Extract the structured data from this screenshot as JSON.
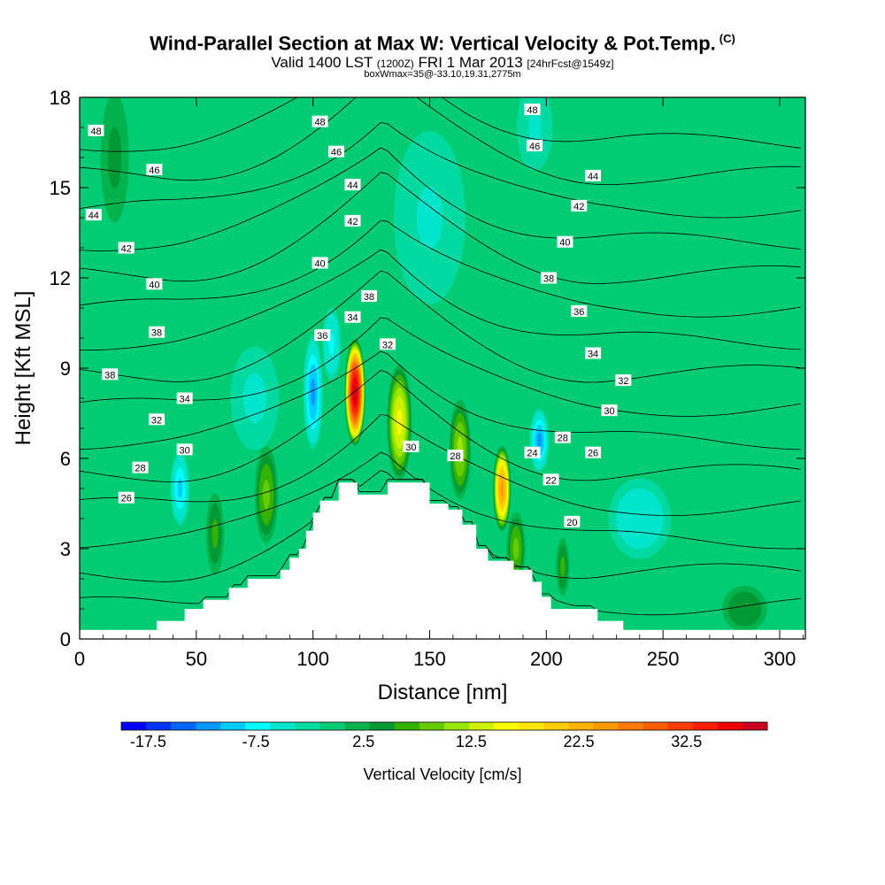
{
  "title": {
    "main": "Wind-Parallel Section at Max W: Vertical Velocity & Pot.Temp.",
    "main_tag": "(C)",
    "valid_pre": "Valid 1400 LST",
    "valid_utc": "(1200Z)",
    "valid_post": "FRI 1 Mar 2013",
    "forecast": "[24hrFcst@1549z]",
    "box": "boxWmax=35@-33.10,19.31,2775m"
  },
  "colors": {
    "background": "#00cc73",
    "terrain": "#ffffff",
    "contour": "#000000",
    "colorbar": [
      "#0000ff",
      "#0033ff",
      "#0066ff",
      "#0099ff",
      "#00ccff",
      "#00ffff",
      "#00e6cc",
      "#00d99f",
      "#00cc73",
      "#00b34d",
      "#009933",
      "#33b300",
      "#66cc00",
      "#99e600",
      "#ccf200",
      "#ffff00",
      "#ffe600",
      "#ffcc00",
      "#ffb300",
      "#ff9900",
      "#ff7a00",
      "#ff5c00",
      "#ff3d00",
      "#ff1f00",
      "#ee0000",
      "#cc0022"
    ]
  },
  "chart_data": {
    "type": "heatmap",
    "xlabel": "Distance [nm]",
    "ylabel": "Height [Kft MSL]",
    "xlim": [
      0,
      311
    ],
    "ylim": [
      0,
      18
    ],
    "xticks": [
      0,
      50,
      100,
      150,
      200,
      250,
      300
    ],
    "yticks": [
      0,
      3,
      6,
      9,
      12,
      15,
      18
    ],
    "colorbar": {
      "label": "Vertical Velocity [cm/s]",
      "min": -20,
      "max": 40,
      "ticks": [
        -17.5,
        -7.5,
        2.5,
        12.5,
        22.5,
        32.5
      ]
    },
    "terrain": [
      [
        0,
        0.3
      ],
      [
        33,
        0.3
      ],
      [
        33,
        0.6
      ],
      [
        45,
        0.6
      ],
      [
        45,
        1.0
      ],
      [
        53,
        1.0
      ],
      [
        53,
        1.3
      ],
      [
        64,
        1.3
      ],
      [
        64,
        1.7
      ],
      [
        72,
        1.7
      ],
      [
        72,
        2.0
      ],
      [
        86,
        2.0
      ],
      [
        86,
        2.3
      ],
      [
        90,
        2.3
      ],
      [
        90,
        2.7
      ],
      [
        94,
        2.7
      ],
      [
        94,
        3.0
      ],
      [
        97,
        3.0
      ],
      [
        97,
        3.6
      ],
      [
        100,
        3.6
      ],
      [
        100,
        4.2
      ],
      [
        103,
        4.2
      ],
      [
        103,
        4.6
      ],
      [
        111,
        4.6
      ],
      [
        111,
        5.2
      ],
      [
        119,
        5.2
      ],
      [
        119,
        4.8
      ],
      [
        132,
        4.8
      ],
      [
        132,
        5.2
      ],
      [
        150,
        5.2
      ],
      [
        150,
        4.5
      ],
      [
        158,
        4.5
      ],
      [
        158,
        4.3
      ],
      [
        164,
        4.3
      ],
      [
        164,
        3.8
      ],
      [
        170,
        3.8
      ],
      [
        170,
        3.0
      ],
      [
        175,
        3.0
      ],
      [
        175,
        2.6
      ],
      [
        186,
        2.6
      ],
      [
        186,
        2.3
      ],
      [
        194,
        2.3
      ],
      [
        194,
        1.9
      ],
      [
        198,
        1.9
      ],
      [
        198,
        1.4
      ],
      [
        202,
        1.4
      ],
      [
        202,
        1.0
      ],
      [
        222,
        1.0
      ],
      [
        222,
        0.6
      ],
      [
        233,
        0.6
      ],
      [
        233,
        0.3
      ],
      [
        311,
        0.3
      ]
    ],
    "vertical_velocity_features": [
      {
        "x": 118,
        "y": 8.2,
        "value": 38,
        "sx": 4,
        "sy": 1.6
      },
      {
        "x": 181,
        "y": 5.0,
        "value": 25,
        "sx": 3.5,
        "sy": 1.3
      },
      {
        "x": 137,
        "y": 7.2,
        "value": 15,
        "sx": 5,
        "sy": 1.8
      },
      {
        "x": 163,
        "y": 6.3,
        "value": 10,
        "sx": 4.5,
        "sy": 1.6
      },
      {
        "x": 80,
        "y": 4.8,
        "value": 9,
        "sx": 5,
        "sy": 1.6
      },
      {
        "x": 58,
        "y": 3.5,
        "value": 6,
        "sx": 4,
        "sy": 1.4
      },
      {
        "x": 187,
        "y": 3.0,
        "value": 8,
        "sx": 4,
        "sy": 1.2
      },
      {
        "x": 207,
        "y": 2.4,
        "value": 6,
        "sx": 3,
        "sy": 1.0
      },
      {
        "x": 100,
        "y": 8.2,
        "value": -12,
        "sx": 4,
        "sy": 1.8
      },
      {
        "x": 108,
        "y": 9.8,
        "value": -8,
        "sx": 4,
        "sy": 1.2
      },
      {
        "x": 43,
        "y": 5.0,
        "value": -10,
        "sx": 4,
        "sy": 1.2
      },
      {
        "x": 197,
        "y": 6.6,
        "value": -12,
        "sx": 4,
        "sy": 1.0
      },
      {
        "x": 240,
        "y": 4.0,
        "value": -6,
        "sx": 14,
        "sy": 1.4
      },
      {
        "x": 150,
        "y": 14.0,
        "value": -5,
        "sx": 16,
        "sy": 3
      },
      {
        "x": 75,
        "y": 8.0,
        "value": -4,
        "sx": 12,
        "sy": 2.0
      },
      {
        "x": 195,
        "y": 17.0,
        "value": -5,
        "sx": 8,
        "sy": 1.5
      },
      {
        "x": 15,
        "y": 16.0,
        "value": 4,
        "sx": 7,
        "sy": 2.5
      },
      {
        "x": 285,
        "y": 1.0,
        "value": 5,
        "sx": 10,
        "sy": 0.8
      }
    ],
    "theta_levels": [
      20,
      22,
      24,
      26,
      28,
      30,
      32,
      34,
      36,
      38,
      40,
      42,
      44,
      46,
      48
    ],
    "theta_labels": [
      {
        "text": "48",
        "x": 7,
        "y": 16.9
      },
      {
        "text": "48",
        "x": 103,
        "y": 17.2
      },
      {
        "text": "48",
        "x": 194,
        "y": 17.6
      },
      {
        "text": "46",
        "x": 32,
        "y": 15.6
      },
      {
        "text": "46",
        "x": 110,
        "y": 16.2
      },
      {
        "text": "46",
        "x": 195,
        "y": 16.4
      },
      {
        "text": "44",
        "x": 6,
        "y": 14.1
      },
      {
        "text": "44",
        "x": 117,
        "y": 15.1
      },
      {
        "text": "44",
        "x": 220,
        "y": 15.4
      },
      {
        "text": "42",
        "x": 20,
        "y": 13.0
      },
      {
        "text": "42",
        "x": 117,
        "y": 13.9
      },
      {
        "text": "42",
        "x": 214,
        "y": 14.4
      },
      {
        "text": "40",
        "x": 32,
        "y": 11.8
      },
      {
        "text": "40",
        "x": 103,
        "y": 12.5
      },
      {
        "text": "40",
        "x": 208,
        "y": 13.2
      },
      {
        "text": "38",
        "x": 33,
        "y": 10.2
      },
      {
        "text": "38",
        "x": 124,
        "y": 11.4
      },
      {
        "text": "38",
        "x": 201,
        "y": 12.0
      },
      {
        "text": "38",
        "x": 13,
        "y": 8.8
      },
      {
        "text": "36",
        "x": 104,
        "y": 10.1
      },
      {
        "text": "36",
        "x": 214,
        "y": 10.9
      },
      {
        "text": "34",
        "x": 117,
        "y": 10.7
      },
      {
        "text": "34",
        "x": 220,
        "y": 9.5
      },
      {
        "text": "34",
        "x": 45,
        "y": 8.0
      },
      {
        "text": "32",
        "x": 132,
        "y": 9.8
      },
      {
        "text": "32",
        "x": 233,
        "y": 8.6
      },
      {
        "text": "32",
        "x": 33,
        "y": 7.3
      },
      {
        "text": "30",
        "x": 227,
        "y": 7.6
      },
      {
        "text": "30",
        "x": 45,
        "y": 6.3
      },
      {
        "text": "30",
        "x": 142,
        "y": 6.4
      },
      {
        "text": "28",
        "x": 207,
        "y": 6.7
      },
      {
        "text": "28",
        "x": 161,
        "y": 6.1
      },
      {
        "text": "28",
        "x": 26,
        "y": 5.7
      },
      {
        "text": "26",
        "x": 220,
        "y": 6.2
      },
      {
        "text": "26",
        "x": 20,
        "y": 4.7
      },
      {
        "text": "24",
        "x": 194,
        "y": 6.2
      },
      {
        "text": "22",
        "x": 202,
        "y": 5.3
      },
      {
        "text": "20",
        "x": 211,
        "y": 3.9
      }
    ]
  }
}
